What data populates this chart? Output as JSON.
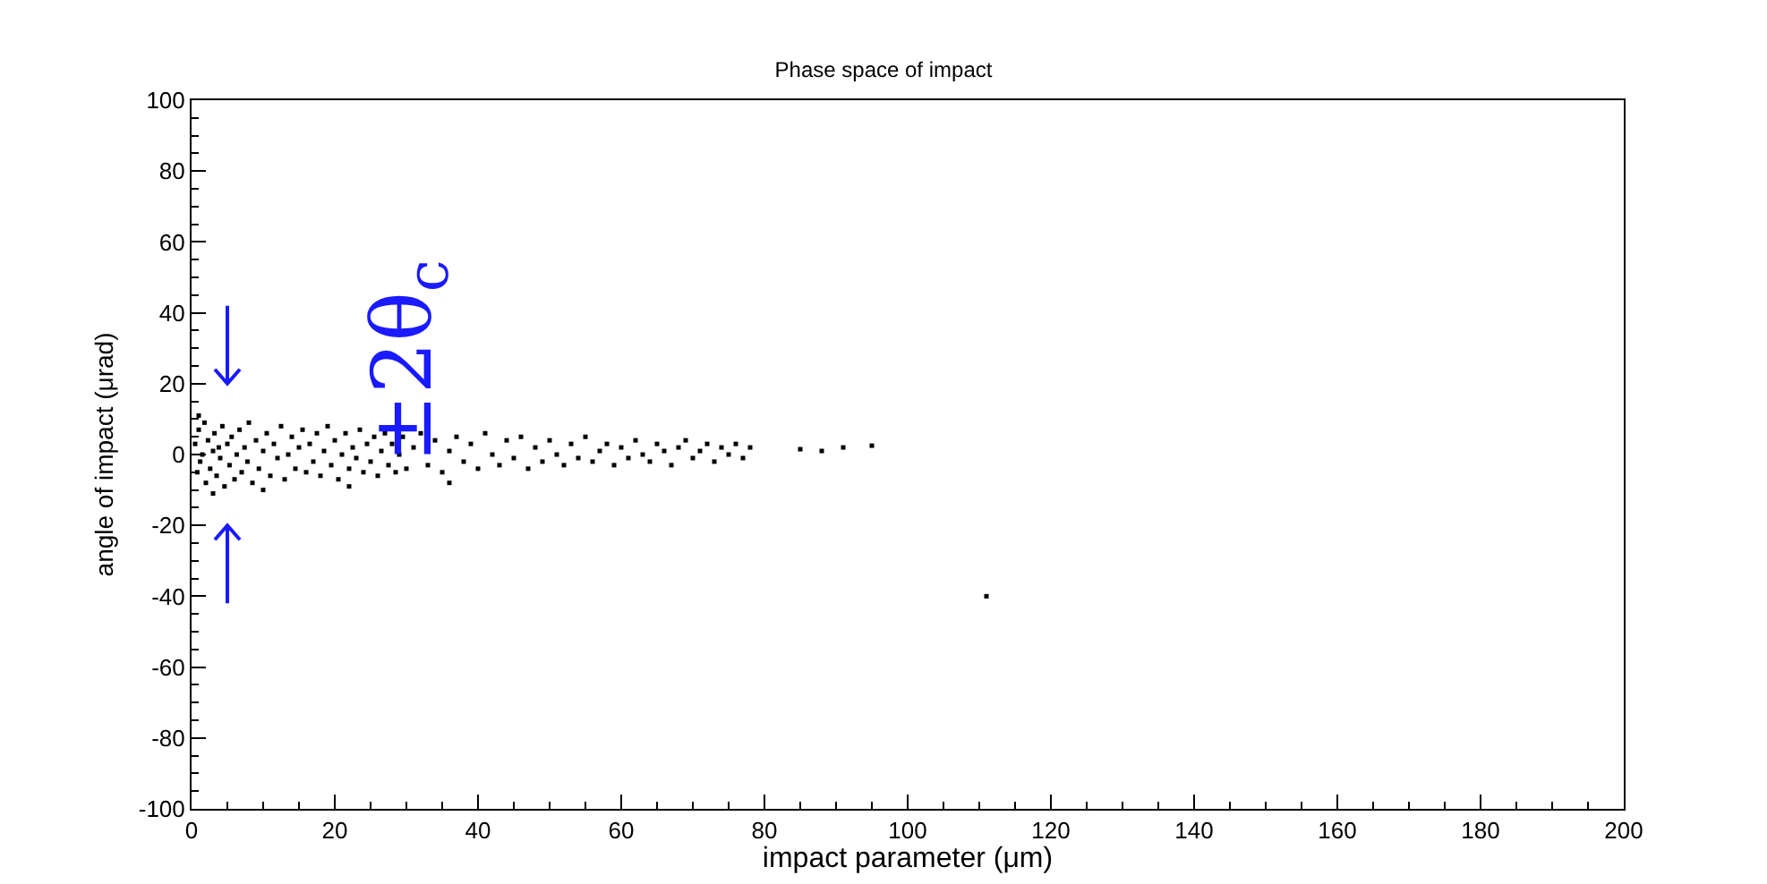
{
  "chart_data": {
    "type": "scatter",
    "title": "Phase space of impact",
    "xlabel": "impact parameter (μm)",
    "ylabel": "angle of impact (μrad)",
    "annotations": [
      "±2θ$_{c}$"
    ],
    "marker": "square",
    "grid": false,
    "xlim": [
      0,
      200
    ],
    "xticks": [
      0,
      20,
      40,
      60,
      80,
      100,
      120,
      140,
      160,
      180,
      200
    ],
    "ylim": [
      -100,
      100
    ],
    "yticks": [
      -100,
      -80,
      -60,
      -40,
      -20,
      0,
      20,
      40,
      60,
      80,
      100
    ],
    "series": [
      {
        "color": "#000000",
        "x": [
          0.5,
          0.8,
          1,
          1.2,
          1.5,
          1.8,
          2,
          2.3,
          2.6,
          3,
          3.2,
          3.5,
          3.8,
          4,
          4.3,
          4.6,
          5,
          5.3,
          5.6,
          6,
          6.3,
          6.7,
          7,
          7.4,
          7.8,
          8,
          8.5,
          9,
          9.4,
          10,
          10.5,
          11,
          11.5,
          12,
          12.5,
          13,
          13.5,
          14,
          14.5,
          15,
          15.5,
          16,
          16.5,
          17,
          17.5,
          18,
          18.5,
          19,
          19.5,
          20,
          20.5,
          21,
          21.5,
          22,
          22.5,
          23,
          23.5,
          24,
          24.5,
          25,
          25.5,
          26,
          26.5,
          27,
          27.5,
          28,
          28.5,
          29,
          29.5,
          30,
          31,
          32,
          33,
          34,
          35,
          36,
          37,
          38,
          39,
          40,
          41,
          42,
          43,
          44,
          45,
          46,
          47,
          48,
          49,
          50,
          51,
          52,
          53,
          54,
          55,
          56,
          57,
          58,
          59,
          60,
          61,
          62,
          63,
          64,
          65,
          66,
          67,
          68,
          69,
          70,
          71,
          72,
          73,
          74,
          75,
          76,
          77,
          78,
          85,
          88,
          91,
          95,
          111,
          3,
          10,
          22,
          36,
          1
        ],
        "values": [
          3,
          -5,
          7,
          -2,
          0,
          9,
          -8,
          4,
          -4,
          1,
          6,
          -6,
          2,
          -1,
          8,
          -9,
          3,
          -3,
          5,
          -7,
          0,
          7,
          -5,
          2,
          -2,
          9,
          -8,
          4,
          -4,
          1,
          6,
          -6,
          3,
          -1,
          8,
          -7,
          0,
          5,
          -4,
          2,
          7,
          -5,
          3,
          -2,
          6,
          -6,
          1,
          8,
          -3,
          4,
          -7,
          0,
          6,
          -4,
          2,
          -1,
          7,
          -5,
          3,
          -2,
          5,
          -6,
          1,
          6,
          -3,
          3,
          -5,
          0,
          5,
          -4,
          2,
          6,
          -3,
          4,
          -5,
          1,
          5,
          -2,
          3,
          -4,
          6,
          0,
          -3,
          4,
          -1,
          5,
          -4,
          2,
          -2,
          4,
          0,
          -3,
          3,
          -1,
          5,
          -2,
          1,
          3,
          -3,
          2,
          -1,
          4,
          0,
          -2,
          3,
          1,
          -3,
          2,
          4,
          -1,
          1,
          3,
          -2,
          2,
          0,
          3,
          -1,
          2,
          1.5,
          1,
          2,
          2.5,
          -40,
          -11,
          -10,
          -9,
          -8,
          11
        ]
      }
    ]
  }
}
